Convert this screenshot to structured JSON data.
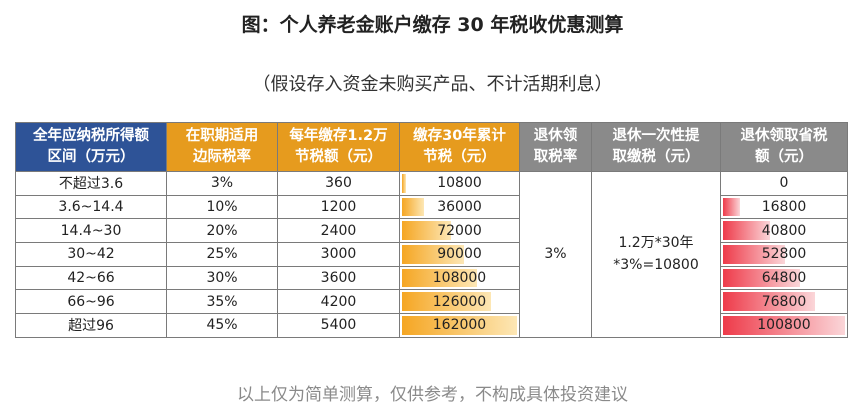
{
  "title": "图：个人养老金账户缴存 30 年税收优惠测算",
  "subtitle": "（假设存入资金未购买产品、不计活期利息）",
  "headers": {
    "col1_line1": "全年应纳税所得额",
    "col1_line2": "区间（万元）",
    "col2_line1": "在职期适用",
    "col2_line2": "边际税率",
    "col3_line1": "每年缴存1.2万",
    "col3_line2": "节税额（元）",
    "col4_line1": "缴存30年累计",
    "col4_line2": "节税（元）",
    "col5_line1": "退休领",
    "col5_line2": "取税率",
    "col6_line1": "退休一次性提",
    "col6_line2": "取缴税（元）",
    "col7_line1": "退休领取省税",
    "col7_line2": "额（元）"
  },
  "rows": [
    {
      "range": "不超过3.6",
      "rate": "3%",
      "annual": "360",
      "cumulative": "10800",
      "cum_frac": 0.067,
      "saved": "0",
      "saved_frac": 0.0
    },
    {
      "range": "3.6~14.4",
      "rate": "10%",
      "annual": "1200",
      "cumulative": "36000",
      "cum_frac": 0.222,
      "saved": "16800",
      "saved_frac": 0.167
    },
    {
      "range": "14.4~30",
      "rate": "20%",
      "annual": "2400",
      "cumulative": "72000",
      "cum_frac": 0.444,
      "saved": "40800",
      "saved_frac": 0.405
    },
    {
      "range": "30~42",
      "rate": "25%",
      "annual": "3000",
      "cumulative": "90000",
      "cum_frac": 0.556,
      "saved": "52800",
      "saved_frac": 0.524
    },
    {
      "range": "42~66",
      "rate": "30%",
      "annual": "3600",
      "cumulative": "108000",
      "cum_frac": 0.667,
      "saved": "64800",
      "saved_frac": 0.643
    },
    {
      "range": "66~96",
      "rate": "35%",
      "annual": "4200",
      "cumulative": "126000",
      "cum_frac": 0.778,
      "saved": "76800",
      "saved_frac": 0.762
    },
    {
      "range": "超过96",
      "rate": "45%",
      "annual": "5400",
      "cumulative": "162000",
      "cum_frac": 1.0,
      "saved": "100800",
      "saved_frac": 1.0
    }
  ],
  "retire_rate": "3%",
  "lump_sum_line1": "1.2万*30年",
  "lump_sum_line2": "*3%=10800",
  "footer": "以上仅为简单测算，仅供参考，不构成具体投资建议",
  "colors": {
    "blue": "#2e5397",
    "orange": "#e69b1e",
    "gray": "#8a8a8a",
    "bar_orange": "#f5a623",
    "bar_red": "#ee3b4a"
  }
}
